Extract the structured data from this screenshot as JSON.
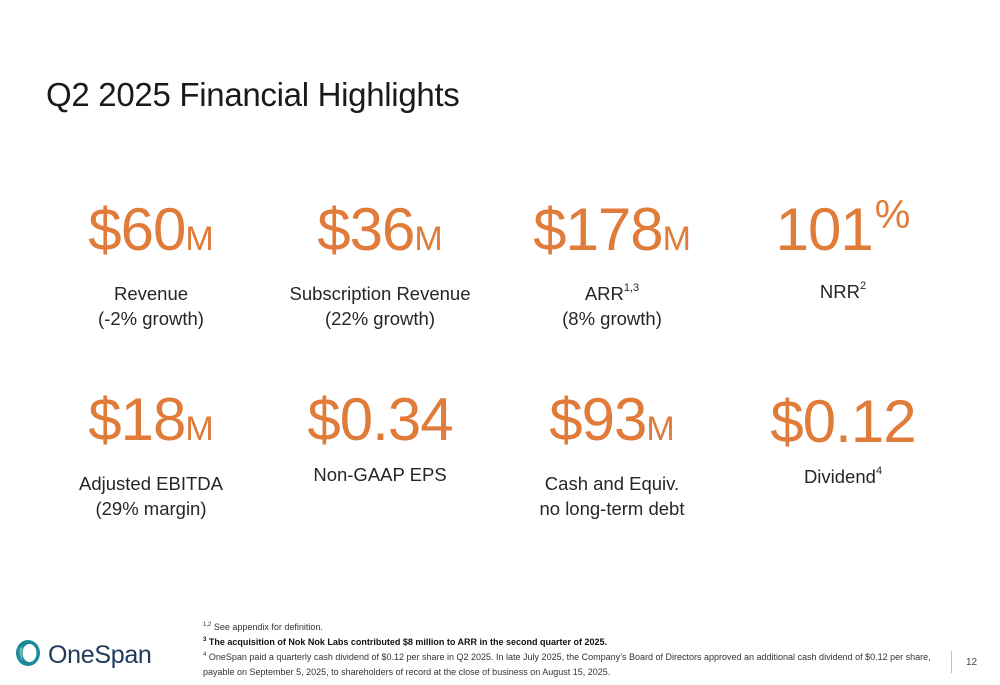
{
  "slide": {
    "title": "Q2 2025 Financial Highlights",
    "page_number": "12"
  },
  "metrics": [
    {
      "value": "$60",
      "unit": "M",
      "label_line1": "Revenue",
      "label_line2": "(-2% growth)"
    },
    {
      "value": "$36",
      "unit": "M",
      "label_line1": "Subscription Revenue",
      "label_line2": "(22% growth)"
    },
    {
      "value": "$178",
      "unit": "M",
      "label_line1": "ARR",
      "label_sup": "1,3",
      "label_line2": "(8% growth)"
    },
    {
      "value": "101",
      "unit": "%",
      "label_line1": "NRR",
      "label_sup": "2"
    },
    {
      "value": "$18",
      "unit": "M",
      "label_line1": "Adjusted EBITDA",
      "label_line2": "(29% margin)"
    },
    {
      "value": "$0.34",
      "label_line1": "Non-GAAP EPS"
    },
    {
      "value": "$93",
      "unit": "M",
      "label_line1": "Cash and Equiv.",
      "label_line2": "no long-term debt"
    },
    {
      "value": "$0.12",
      "label_line1": "Dividend",
      "label_sup": "4"
    }
  ],
  "footnotes": {
    "fn1_marker": "1,2",
    "fn1_text": " See appendix for definition.",
    "fn3_marker": "3",
    "fn3_text": " The acquisition of Nok Nok Labs contributed $8 million to ARR in the second quarter of 2025.",
    "fn4_marker": "4",
    "fn4_text": " OneSpan paid a quarterly cash dividend of $0.12 per share in Q2 2025. In late July 2025, the Company’s Board of Directors approved an additional cash dividend of $0.12 per share, payable on September 5, 2025, to shareholders of record at the close of business on August 15, 2025."
  },
  "logo": {
    "text": "OneSpan",
    "icon": "onespan-ring-icon",
    "colors": {
      "ring_outer": "#1f8a9e",
      "ring_inner": "#6cc3b0",
      "text": "#1f3a5c"
    }
  },
  "colors": {
    "accent": "#e07b39",
    "title": "#1a1a1a",
    "body": "#262626"
  }
}
